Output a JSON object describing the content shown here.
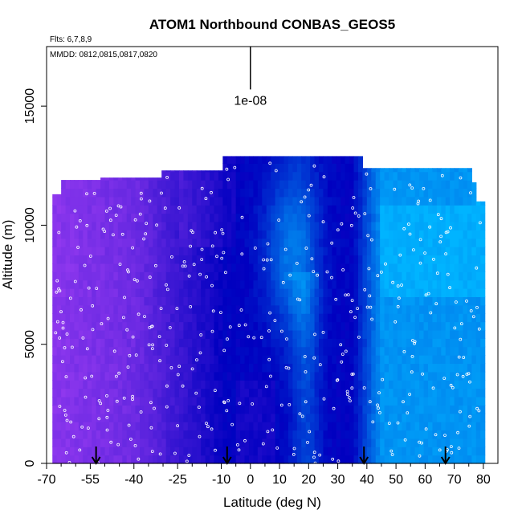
{
  "chart_data": {
    "type": "heatmap",
    "title": "ATOM1 Northbound CONBAS_GEOS5",
    "flights_note": "Flts: 6,7,8,9",
    "dates_note": "MMDD: 0812,0815,0817,0820",
    "scale_label": "1e-08",
    "xlabel": "Latitude (deg N)",
    "ylabel": "Altitude (m)",
    "xlim": [
      -70,
      85
    ],
    "ylim": [
      0,
      17500
    ],
    "x_ticks": [
      -70,
      -55,
      -40,
      -25,
      -10,
      0,
      10,
      20,
      30,
      40,
      50,
      60,
      70,
      80
    ],
    "x_minor_ticks": [
      -65,
      -60,
      -50,
      -45,
      -35,
      -30,
      -20,
      -15,
      -5,
      5,
      15,
      25,
      35,
      45,
      55,
      65,
      75
    ],
    "y_ticks": [
      0,
      5000,
      10000,
      15000
    ],
    "flight_markers_lat": [
      -53,
      -8,
      39,
      67
    ],
    "scale_bar": {
      "lat": 0,
      "alt_bottom": 15700,
      "alt_top": 17500
    },
    "colors": {
      "low": "#9a3cf2",
      "mid": "#0000c0",
      "high": "#00b4ff",
      "sample_points": "#ffffff",
      "axis": "#000000"
    },
    "profile_top_m": [
      {
        "lat_from": -68,
        "lat_to": -65,
        "top": 11300
      },
      {
        "lat_from": -65,
        "lat_to": -51,
        "top": 11900
      },
      {
        "lat_from": -51,
        "lat_to": -31,
        "top": 12000
      },
      {
        "lat_from": -31,
        "lat_to": -9,
        "top": 12300
      },
      {
        "lat_from": -9,
        "lat_to": 39,
        "top": 12900
      },
      {
        "lat_from": 39,
        "lat_to": 76,
        "top": 12400
      },
      {
        "lat_from": 76,
        "lat_to": 78,
        "top": 11800
      },
      {
        "lat_from": 78,
        "lat_to": 80,
        "top": 11000
      }
    ]
  }
}
